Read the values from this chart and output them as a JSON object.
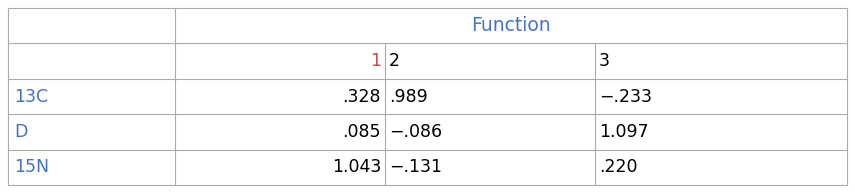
{
  "title": "Function",
  "title_color": "#4472C4",
  "col_header_color": "#C0504D",
  "row_header_color": "#4472C4",
  "col_headers": [
    "1",
    "2",
    "3"
  ],
  "row_headers": [
    "13C",
    "D",
    "15N"
  ],
  "cell_data": [
    [
      ".328",
      ".989",
      "−.233"
    ],
    [
      ".085",
      "−.086",
      "1.097"
    ],
    [
      "1.043",
      "−.131",
      ".220"
    ]
  ],
  "background_color": "#ffffff",
  "line_color": "#aaaaaa",
  "font_size": 12.5,
  "fig_width": 8.55,
  "fig_height": 1.93
}
